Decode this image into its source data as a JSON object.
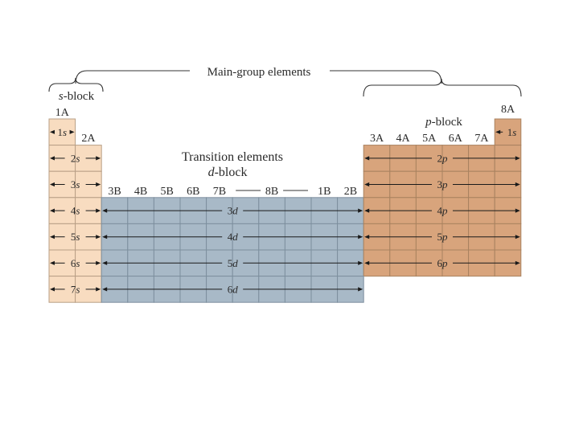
{
  "main_group_label": "Main-group elements",
  "s_block_label": "s-block",
  "p_block_label": "p-block",
  "transition_label": "Transition elements",
  "d_block_label": "d-block",
  "group_labels": {
    "g1": "1A",
    "g2": "2A",
    "g3to7": [
      "3B",
      "4B",
      "5B",
      "6B",
      "7B"
    ],
    "g8": "8B",
    "g11": "1B",
    "g12": "2B",
    "p_groups": [
      "3A",
      "4A",
      "5A",
      "6A",
      "7A"
    ],
    "g18": "8A"
  },
  "orbitals": {
    "s_first": "1s",
    "s_rows": [
      "2s",
      "3s",
      "4s",
      "5s",
      "6s",
      "7s"
    ],
    "d_rows": [
      "3d",
      "4d",
      "5d",
      "6d"
    ],
    "p_rows": [
      "2p",
      "3p",
      "4p",
      "5p",
      "6p"
    ],
    "he": "1s"
  },
  "colors": {
    "s_block": "#f8dcc0",
    "d_block": "#a8b9c7",
    "p_block": "#d8a47c",
    "s_border": "#b89f86",
    "d_border": "#7d8f9e",
    "p_border": "#a9825f"
  }
}
